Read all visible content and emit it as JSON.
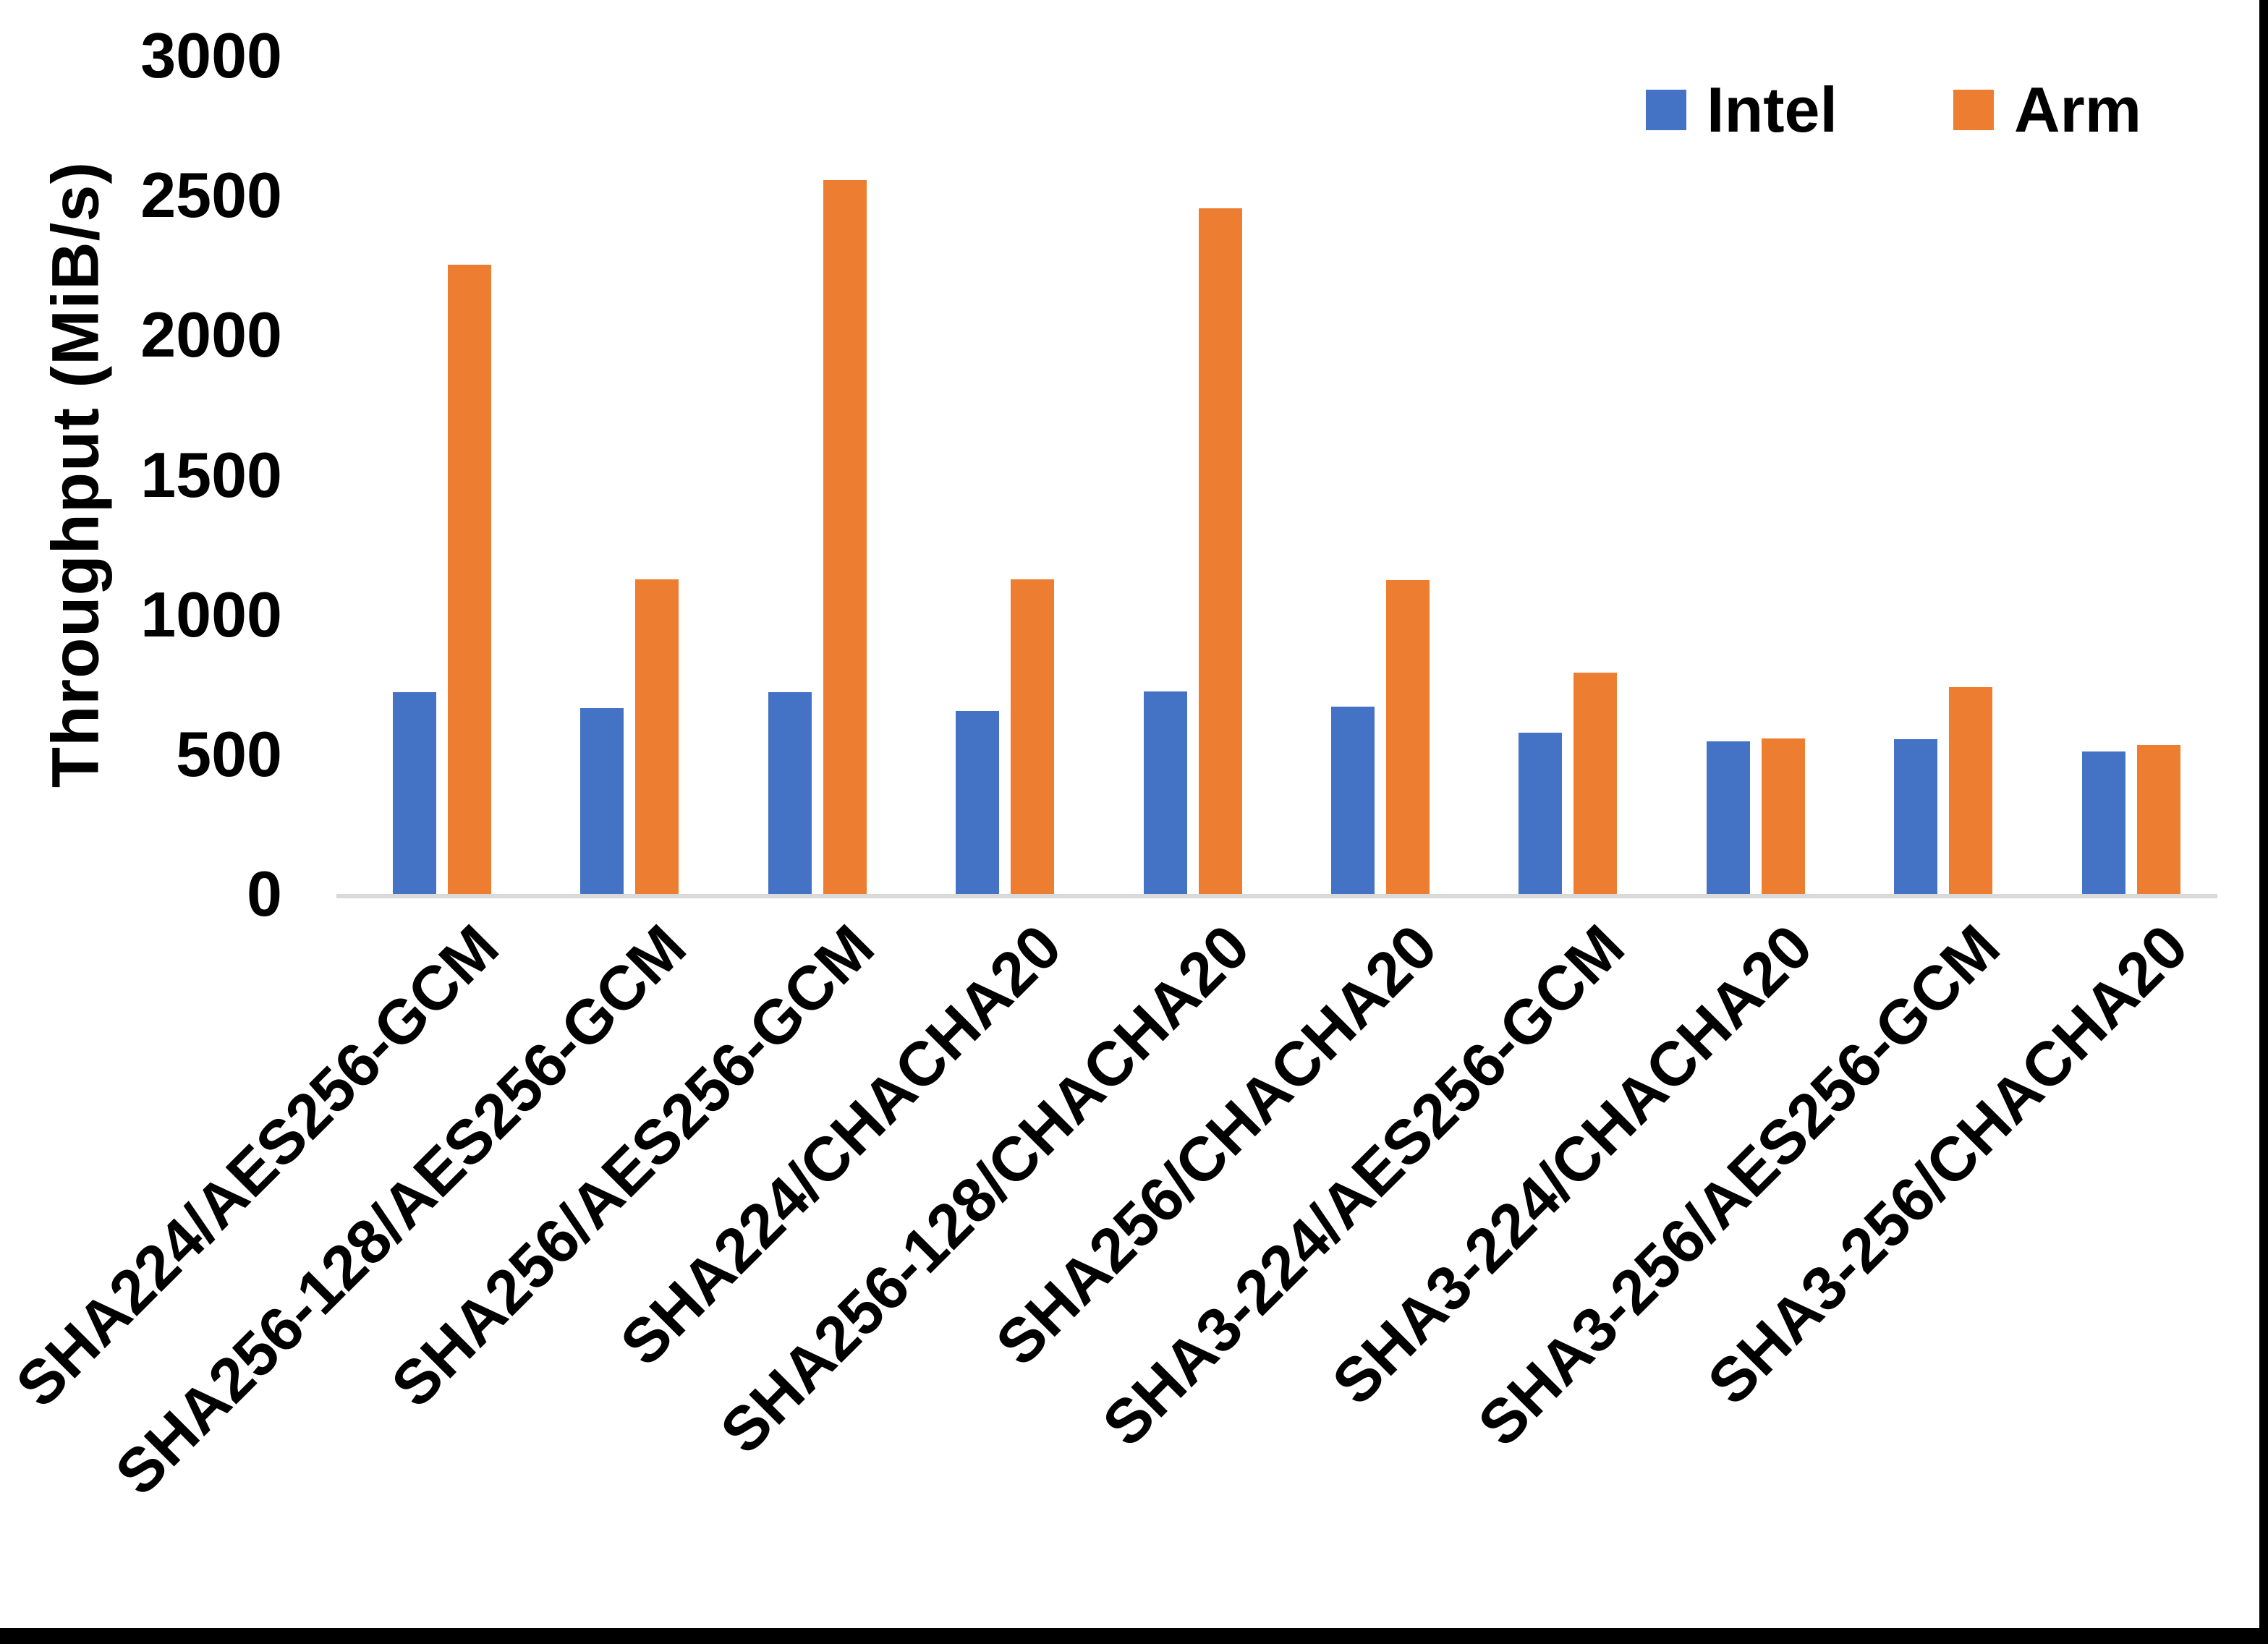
{
  "figure": {
    "background": "#ffffff",
    "frame_color": "#000000",
    "axis_line_color": "#d9d9d9",
    "text_color": "#000000"
  },
  "legend": {
    "position": "top-right",
    "items": [
      {
        "label": "Intel",
        "color": "#4472C4"
      },
      {
        "label": "Arm",
        "color": "#ED7D31"
      }
    ]
  },
  "chart_data": {
    "type": "bar",
    "title": "",
    "xlabel": "",
    "ylabel": "Throughput (MiB/s)",
    "ylim": [
      0,
      3000
    ],
    "yticks": [
      0,
      500,
      1000,
      1500,
      2000,
      2500,
      3000
    ],
    "grid": false,
    "legend_position": "top-right",
    "categories": [
      "SHA224/AES256-GCM",
      "SHA256-128/AES256-GCM",
      "SHA256/AES256-GCM",
      "SHA224/CHACHA20",
      "SHA256-128/CHACHA20",
      "SHA256/CHACHA20",
      "SHA3-224/AES256-GCM",
      "SHA3-224/CHACHA20",
      "SHA3-256/AES256-GCM",
      "SHA3-256/CHACHA20"
    ],
    "series": [
      {
        "name": "Intel",
        "color": "#4472C4",
        "values": [
          721,
          665,
          723,
          654,
          724,
          670,
          577,
          547,
          553,
          510
        ]
      },
      {
        "name": "Arm",
        "color": "#ED7D31",
        "values": [
          2253,
          1126,
          2556,
          1126,
          2455,
          1123,
          791,
          556,
          740,
          532
        ]
      }
    ]
  }
}
